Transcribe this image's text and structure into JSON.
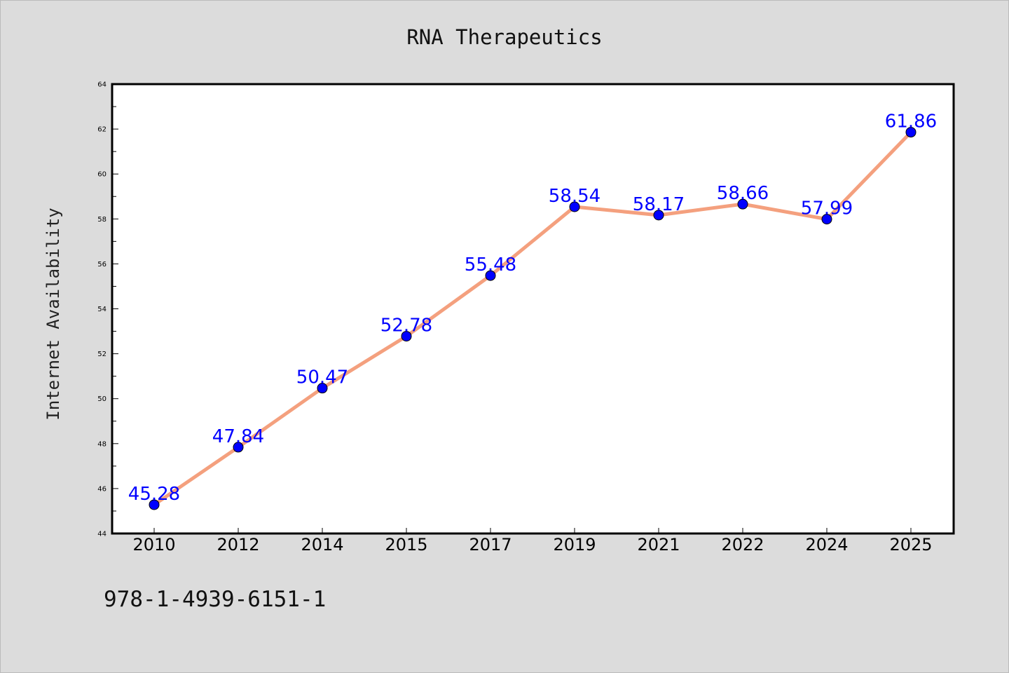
{
  "chart_data": {
    "type": "line",
    "title": "RNA Therapeutics",
    "xlabel": "",
    "ylabel": "Internet Availability",
    "categories": [
      "2010",
      "2012",
      "2014",
      "2015",
      "2017",
      "2019",
      "2021",
      "2022",
      "2024",
      "2025"
    ],
    "values": [
      45.28,
      47.84,
      50.47,
      52.78,
      55.48,
      58.54,
      58.17,
      58.66,
      57.99,
      61.86
    ],
    "data_labels": [
      "45.28",
      "47.84",
      "50.47",
      "52.78",
      "55.48",
      "58.54",
      "58.17",
      "58.66",
      "57.99",
      "61.86"
    ],
    "ylim": [
      44,
      64
    ],
    "yticks": [
      44,
      46,
      48,
      50,
      52,
      54,
      56,
      58,
      60,
      62,
      64
    ],
    "grid": false,
    "legend": "none",
    "line_color": "#f4a07e",
    "marker_color": "#0000ff",
    "label_color": "#0000ff"
  },
  "footer": {
    "text": "978-1-4939-6151-1"
  }
}
